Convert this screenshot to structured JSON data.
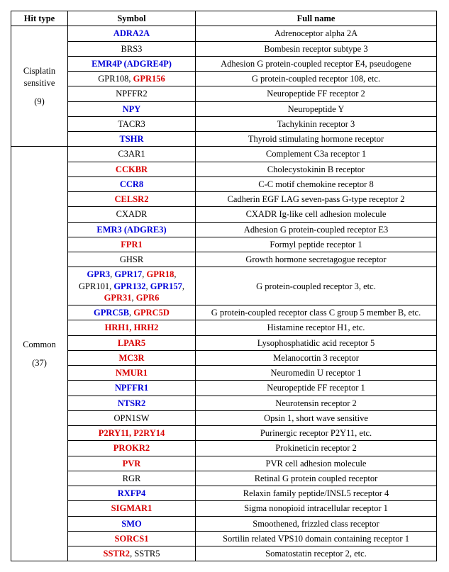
{
  "headers": {
    "hittype": "Hit type",
    "symbol": "Symbol",
    "fullname": "Full name"
  },
  "groups": [
    {
      "label": "Cisplatin sensitive",
      "count": "(9)",
      "rows": [
        {
          "symbol": [
            {
              "t": "ADRA2A",
              "c": "blue"
            }
          ],
          "full": "Adrenoceptor alpha 2A"
        },
        {
          "symbol": [
            {
              "t": "BRS3",
              "c": "blk"
            }
          ],
          "full": "Bombesin receptor subtype 3"
        },
        {
          "symbol": [
            {
              "t": "EMR4P (ADGRE4P)",
              "c": "blue"
            }
          ],
          "full": "Adhesion G protein-coupled receptor E4, pseudogene"
        },
        {
          "symbol": [
            {
              "t": "GPR108",
              "c": "blk"
            },
            {
              "t": ", ",
              "c": "blk"
            },
            {
              "t": "GPR156",
              "c": "red"
            }
          ],
          "full": "G protein-coupled receptor 108, etc."
        },
        {
          "symbol": [
            {
              "t": "NPFFR2",
              "c": "blk"
            }
          ],
          "full": "Neuropeptide FF receptor 2"
        },
        {
          "symbol": [
            {
              "t": "NPY",
              "c": "blue"
            }
          ],
          "full": "Neuropeptide Y"
        },
        {
          "symbol": [
            {
              "t": "TACR3",
              "c": "blk"
            }
          ],
          "full": "Tachykinin receptor 3"
        },
        {
          "symbol": [
            {
              "t": "TSHR",
              "c": "blue"
            }
          ],
          "full": "Thyroid stimulating hormone receptor"
        }
      ]
    },
    {
      "label": "Common",
      "count": "(37)",
      "rows": [
        {
          "symbol": [
            {
              "t": "C3AR1",
              "c": "blk"
            }
          ],
          "full": "Complement C3a receptor 1"
        },
        {
          "symbol": [
            {
              "t": "CCKBR",
              "c": "red"
            }
          ],
          "full": "Cholecystokinin B receptor"
        },
        {
          "symbol": [
            {
              "t": "CCR8",
              "c": "blue"
            }
          ],
          "full": "C-C motif chemokine receptor 8"
        },
        {
          "symbol": [
            {
              "t": "CELSR2",
              "c": "red"
            }
          ],
          "full": "Cadherin EGF LAG seven-pass G-type receptor 2"
        },
        {
          "symbol": [
            {
              "t": "CXADR",
              "c": "blk"
            }
          ],
          "full": "CXADR Ig-like cell adhesion molecule"
        },
        {
          "symbol": [
            {
              "t": "EMR3 (ADGRE3)",
              "c": "blue"
            }
          ],
          "full": "Adhesion G protein-coupled receptor E3"
        },
        {
          "symbol": [
            {
              "t": "FPR1",
              "c": "red"
            }
          ],
          "full": "Formyl peptide receptor 1"
        },
        {
          "symbol": [
            {
              "t": "GHSR",
              "c": "blk"
            }
          ],
          "full": "Growth hormone secretagogue receptor"
        },
        {
          "symbol": [
            {
              "t": "GPR3",
              "c": "blue"
            },
            {
              "t": ", ",
              "c": "blk"
            },
            {
              "t": "GPR17",
              "c": "blue"
            },
            {
              "t": ", ",
              "c": "blk"
            },
            {
              "t": "GPR18",
              "c": "red"
            },
            {
              "t": ", ",
              "c": "blk"
            },
            {
              "t": "GPR101",
              "c": "blk"
            },
            {
              "t": ", ",
              "c": "blk"
            },
            {
              "t": "GPR132",
              "c": "blue"
            },
            {
              "t": ", ",
              "c": "blk"
            },
            {
              "t": "GPR157",
              "c": "blue"
            },
            {
              "t": ", ",
              "c": "blk"
            },
            {
              "t": "GPR31",
              "c": "red"
            },
            {
              "t": ", ",
              "c": "blk"
            },
            {
              "t": "GPR6",
              "c": "red"
            }
          ],
          "full": "G protein-coupled receptor 3, etc."
        },
        {
          "symbol": [
            {
              "t": "GPRC5B",
              "c": "blue"
            },
            {
              "t": ", ",
              "c": "blk"
            },
            {
              "t": "GPRC5D",
              "c": "red"
            }
          ],
          "full": "G protein-coupled receptor class C group 5 member B, etc."
        },
        {
          "symbol": [
            {
              "t": "HRH1",
              "c": "red"
            },
            {
              "t": ", ",
              "c": "red"
            },
            {
              "t": "HRH2",
              "c": "red"
            }
          ],
          "full": "Histamine receptor H1, etc."
        },
        {
          "symbol": [
            {
              "t": "LPAR5",
              "c": "red"
            }
          ],
          "full": "Lysophosphatidic acid receptor 5"
        },
        {
          "symbol": [
            {
              "t": "MC3R",
              "c": "red"
            }
          ],
          "full": "Melanocortin 3 receptor"
        },
        {
          "symbol": [
            {
              "t": "NMUR1",
              "c": "red"
            }
          ],
          "full": "Neuromedin U receptor 1"
        },
        {
          "symbol": [
            {
              "t": "NPFFR1",
              "c": "blue"
            }
          ],
          "full": "Neuropeptide FF receptor 1"
        },
        {
          "symbol": [
            {
              "t": "NTSR2",
              "c": "blue"
            }
          ],
          "full": "Neurotensin receptor 2"
        },
        {
          "symbol": [
            {
              "t": "OPN1SW",
              "c": "blk"
            }
          ],
          "full": "Opsin 1, short wave sensitive"
        },
        {
          "symbol": [
            {
              "t": "P2RY11",
              "c": "red"
            },
            {
              "t": ", ",
              "c": "red"
            },
            {
              "t": "P2RY14",
              "c": "red"
            }
          ],
          "full": "Purinergic receptor P2Y11, etc."
        },
        {
          "symbol": [
            {
              "t": "PROKR2",
              "c": "red"
            }
          ],
          "full": "Prokineticin receptor 2"
        },
        {
          "symbol": [
            {
              "t": "PVR",
              "c": "red"
            }
          ],
          "full": "PVR cell adhesion molecule"
        },
        {
          "symbol": [
            {
              "t": "RGR",
              "c": "blk"
            }
          ],
          "full": "Retinal G protein coupled receptor"
        },
        {
          "symbol": [
            {
              "t": "RXFP4",
              "c": "blue"
            }
          ],
          "full": "Relaxin family peptide/INSL5 receptor 4"
        },
        {
          "symbol": [
            {
              "t": "SIGMAR1",
              "c": "red"
            }
          ],
          "full": "Sigma nonopioid intracellular receptor 1"
        },
        {
          "symbol": [
            {
              "t": "SMO",
              "c": "blue"
            }
          ],
          "full": "Smoothened, frizzled class receptor"
        },
        {
          "symbol": [
            {
              "t": "SORCS1",
              "c": "red"
            }
          ],
          "full": "Sortilin related VPS10 domain containing receptor 1"
        },
        {
          "symbol": [
            {
              "t": "SSTR2",
              "c": "red"
            },
            {
              "t": ", ",
              "c": "blk"
            },
            {
              "t": "SSTR5",
              "c": "blk"
            }
          ],
          "full": "Somatostatin receptor 2, etc."
        }
      ]
    }
  ]
}
